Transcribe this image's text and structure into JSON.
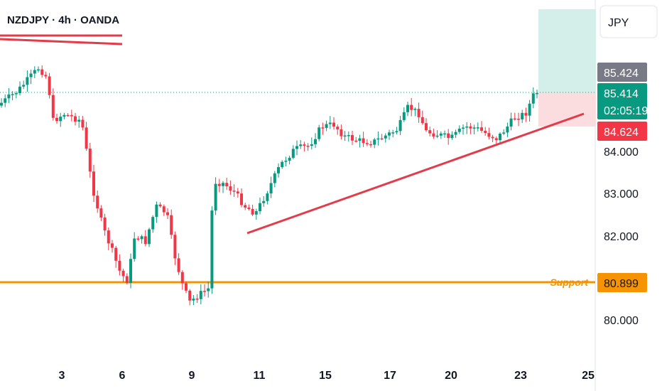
{
  "header": {
    "title": "NZDJPY · 4h · OANDA"
  },
  "currency_button": {
    "label": "JPY"
  },
  "chart_data": {
    "type": "candlestick",
    "title": "NZDJPY · 4h · OANDA",
    "currency": "JPY",
    "y_ticks": [
      "84.000",
      "83.000",
      "82.000",
      "80.000"
    ],
    "x_ticks": [
      "3",
      "6",
      "9",
      "11",
      "15",
      "17",
      "20",
      "23",
      "25"
    ],
    "price_labels": {
      "stop": "85.424",
      "current": "85.414",
      "countdown": "02:05:19",
      "entry": "84.624",
      "support": "80.899"
    },
    "support_label": "Support",
    "support_level": 80.899,
    "colors": {
      "up": "#089981",
      "down": "#f23645",
      "support": "#f59300",
      "trend": "#e23b4a",
      "target_zone": "#d4efe9",
      "stop_zone": "#fbdde0",
      "stop_badge": "#787b86",
      "current_badge": "#089981",
      "entry_badge": "#f23645"
    }
  }
}
